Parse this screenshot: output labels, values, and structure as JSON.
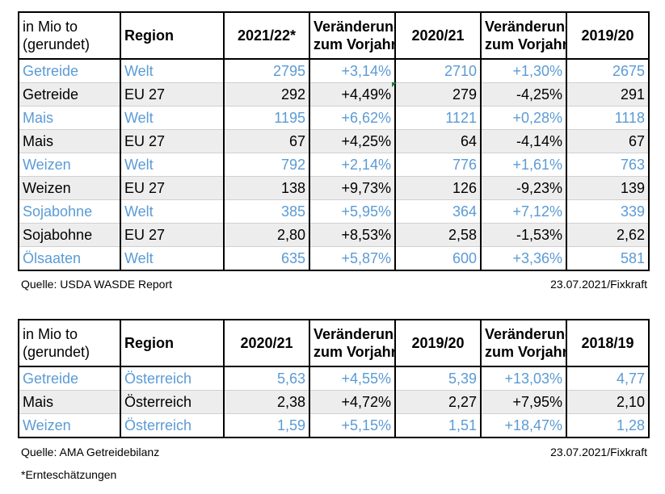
{
  "table1": {
    "header": {
      "unit_line1": "in Mio to",
      "unit_line2": "(gerundet)",
      "region": "Region",
      "col1": "2021/22*",
      "chg1_line1": "Veränderung",
      "chg1_line2": "zum Vorjahr",
      "col2": "2020/21",
      "chg2_line1": "Veränderung",
      "chg2_line2": "zum Vorjahr",
      "col3": "2019/20"
    },
    "rows": [
      {
        "product": "Getreide",
        "region": "Welt",
        "v1": "2795",
        "c1": "+3,14%",
        "v2": "2710",
        "c2": "+1,30%",
        "v3": "2675"
      },
      {
        "product": "Getreide",
        "region": "EU 27",
        "v1": "292",
        "c1": "+4,49%",
        "v2": "279",
        "c2": "-4,25%",
        "v3": "291"
      },
      {
        "product": "Mais",
        "region": "Welt",
        "v1": "1195",
        "c1": "+6,62%",
        "v2": "1121",
        "c2": "+0,28%",
        "v3": "1118"
      },
      {
        "product": "Mais",
        "region": "EU 27",
        "v1": "67",
        "c1": "+4,25%",
        "v2": "64",
        "c2": "-4,14%",
        "v3": "67"
      },
      {
        "product": "Weizen",
        "region": "Welt",
        "v1": "792",
        "c1": "+2,14%",
        "v2": "776",
        "c2": "+1,61%",
        "v3": "763"
      },
      {
        "product": "Weizen",
        "region": "EU 27",
        "v1": "138",
        "c1": "+9,73%",
        "v2": "126",
        "c2": "-9,23%",
        "v3": "139"
      },
      {
        "product": "Sojabohne",
        "region": "Welt",
        "v1": "385",
        "c1": "+5,95%",
        "v2": "364",
        "c2": "+7,12%",
        "v3": "339"
      },
      {
        "product": "Sojabohne",
        "region": "EU 27",
        "v1": "2,80",
        "c1": "+8,53%",
        "v2": "2,58",
        "c2": "-1,53%",
        "v3": "2,62"
      },
      {
        "product": "Ölsaaten",
        "region": "Welt",
        "v1": "635",
        "c1": "+5,87%",
        "v2": "600",
        "c2": "+3,36%",
        "v3": "581"
      }
    ],
    "source": "Quelle: USDA WASDE Report",
    "date": "23.07.2021/Fixkraft"
  },
  "table2": {
    "header": {
      "unit_line1": "in Mio to",
      "unit_line2": "(gerundet)",
      "region": "Region",
      "col1": "2020/21",
      "chg1_line1": "Veränderung",
      "chg1_line2": "zum Vorjahr",
      "col2": "2019/20",
      "chg2_line1": "Veränderung",
      "chg2_line2": "zum Vorjahr",
      "col3": "2018/19"
    },
    "rows": [
      {
        "product": "Getreide",
        "region": "Österreich",
        "v1": "5,63",
        "c1": "+4,55%",
        "v2": "5,39",
        "c2": "+13,03%",
        "v3": "4,77"
      },
      {
        "product": "Mais",
        "region": "Österreich",
        "v1": "2,38",
        "c1": "+4,72%",
        "v2": "2,27",
        "c2": "+7,95%",
        "v3": "2,10"
      },
      {
        "product": "Weizen",
        "region": "Österreich",
        "v1": "1,59",
        "c1": "+5,15%",
        "v2": "1,51",
        "c2": "+18,47%",
        "v3": "1,28"
      }
    ],
    "source": "Quelle: AMA Getreidebilanz",
    "date": "23.07.2021/Fixkraft"
  },
  "footnote": "*Ernteschätzungen",
  "colors": {
    "world_text": "#5b9bd5",
    "alt_row_bg": "#ededed",
    "border": "#000000"
  }
}
